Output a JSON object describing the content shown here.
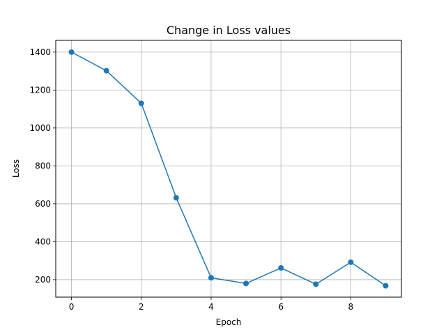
{
  "chart_data": {
    "type": "line",
    "title": "Change in Loss values",
    "xlabel": "Epoch",
    "ylabel": "Loss",
    "xlim": [
      -0.45,
      9.45
    ],
    "ylim": [
      108,
      1462
    ],
    "xticks": [
      0,
      2,
      4,
      6,
      8
    ],
    "yticks": [
      200,
      400,
      600,
      800,
      1000,
      1200,
      1400
    ],
    "grid": true,
    "series": [
      {
        "x": [
          0,
          1,
          2,
          3,
          4,
          5,
          6,
          7,
          8,
          9
        ],
        "values": [
          1400,
          1302,
          1130,
          632,
          210,
          180,
          262,
          176,
          292,
          168
        ],
        "marker": "circle"
      }
    ],
    "colors": {
      "line": "#1f77b4",
      "grid": "#b0b0b0",
      "axis": "#000000"
    }
  }
}
